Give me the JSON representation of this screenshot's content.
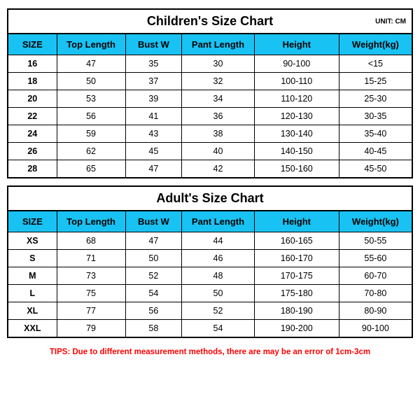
{
  "children": {
    "title": "Children's Size Chart",
    "unit": "UNIT: CM",
    "header_bg": "#18c2f2",
    "columns": [
      "SIZE",
      "Top Length",
      "Bust W",
      "Pant Length",
      "Height",
      "Weight(kg)"
    ],
    "rows": [
      [
        "16",
        "47",
        "35",
        "30",
        "90-100",
        "<15"
      ],
      [
        "18",
        "50",
        "37",
        "32",
        "100-110",
        "15-25"
      ],
      [
        "20",
        "53",
        "39",
        "34",
        "110-120",
        "25-30"
      ],
      [
        "22",
        "56",
        "41",
        "36",
        "120-130",
        "30-35"
      ],
      [
        "24",
        "59",
        "43",
        "38",
        "130-140",
        "35-40"
      ],
      [
        "26",
        "62",
        "45",
        "40",
        "140-150",
        "40-45"
      ],
      [
        "28",
        "65",
        "47",
        "42",
        "150-160",
        "45-50"
      ]
    ]
  },
  "adult": {
    "title": "Adult's Size Chart",
    "header_bg": "#18c2f2",
    "columns": [
      "SIZE",
      "Top Length",
      "Bust W",
      "Pant Length",
      "Height",
      "Weight(kg)"
    ],
    "rows": [
      [
        "XS",
        "68",
        "47",
        "44",
        "160-165",
        "50-55"
      ],
      [
        "S",
        "71",
        "50",
        "46",
        "160-170",
        "55-60"
      ],
      [
        "M",
        "73",
        "52",
        "48",
        "170-175",
        "60-70"
      ],
      [
        "L",
        "75",
        "54",
        "50",
        "175-180",
        "70-80"
      ],
      [
        "XL",
        "77",
        "56",
        "52",
        "180-190",
        "80-90"
      ],
      [
        "XXL",
        "79",
        "58",
        "54",
        "190-200",
        "90-100"
      ]
    ]
  },
  "tips": "TIPS: Due to different measurement methods, there are may be an error of 1cm-3cm"
}
